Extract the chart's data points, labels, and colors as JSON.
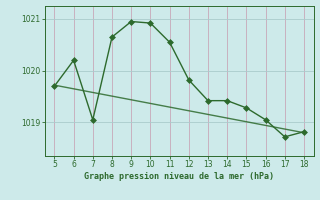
{
  "x": [
    5,
    6,
    7,
    8,
    9,
    10,
    11,
    12,
    13,
    14,
    15,
    16,
    17,
    18
  ],
  "y": [
    1019.7,
    1020.2,
    1019.05,
    1020.65,
    1020.95,
    1020.92,
    1020.55,
    1019.82,
    1019.42,
    1019.42,
    1019.28,
    1019.05,
    1018.72,
    1018.82
  ],
  "trend_x": [
    5,
    18
  ],
  "trend_y": [
    1019.72,
    1018.8
  ],
  "line_color": "#2d6a2d",
  "bg_color": "#cdeaea",
  "grid_color": "#aacccc",
  "xlabel": "Graphe pression niveau de la mer (hPa)",
  "yticks": [
    1019,
    1020,
    1021
  ],
  "xticks": [
    5,
    6,
    7,
    8,
    9,
    10,
    11,
    12,
    13,
    14,
    15,
    16,
    17,
    18
  ],
  "xlim": [
    4.5,
    18.5
  ],
  "ylim": [
    1018.35,
    1021.25
  ],
  "markersize": 3.0,
  "linewidth": 1.0,
  "trend_linewidth": 1.0
}
